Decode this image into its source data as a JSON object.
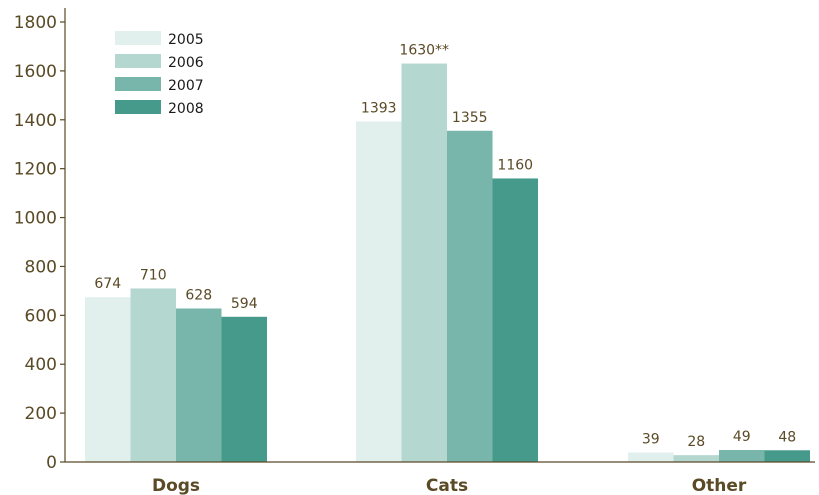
{
  "chart_data": {
    "type": "bar",
    "categories": [
      "Dogs",
      "Cats",
      "Other"
    ],
    "series": [
      {
        "name": "2005",
        "values": [
          674,
          1393,
          39
        ],
        "labels": [
          "674",
          "1393",
          "39"
        ],
        "color": "#e2f0ed"
      },
      {
        "name": "2006",
        "values": [
          710,
          1630,
          28
        ],
        "labels": [
          "710",
          "1630**",
          "28"
        ],
        "color": "#b4d7d0"
      },
      {
        "name": "2007",
        "values": [
          628,
          1355,
          49
        ],
        "labels": [
          "628",
          "1355",
          "49"
        ],
        "color": "#78b5aa"
      },
      {
        "name": "2008",
        "values": [
          594,
          1160,
          48
        ],
        "labels": [
          "594",
          "1160",
          "48"
        ],
        "color": "#469a8c"
      }
    ],
    "y_ticks": [
      "0",
      "200",
      "400",
      "600",
      "800",
      "1000",
      "1200",
      "1400",
      "1600",
      "1800"
    ],
    "ylim": [
      0,
      1800
    ],
    "grid": false,
    "legend_position": "top-left",
    "text_color": "#5a4a26",
    "axis_color": "#5a4a26"
  }
}
